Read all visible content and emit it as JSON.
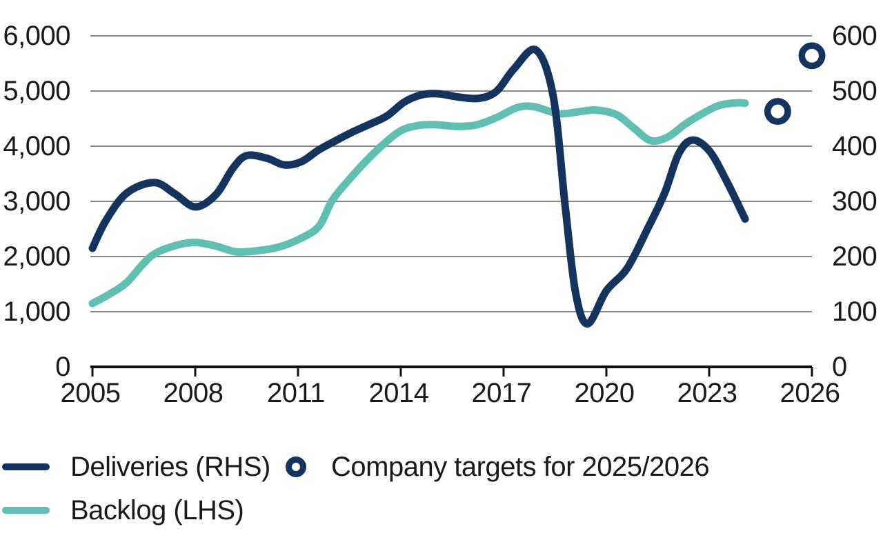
{
  "chart_data": {
    "type": "line",
    "title": "",
    "grid": true,
    "x_axis": {
      "tick_years": [
        2005,
        2008,
        2011,
        2014,
        2017,
        2020,
        2023,
        2026
      ],
      "tick_labels": [
        "2005",
        "2008",
        "2011",
        "2014",
        "2017",
        "2020",
        "2023",
        "2026"
      ],
      "range": [
        2005,
        2026
      ]
    },
    "y_axis_left": {
      "side": "left",
      "tick_values": [
        6000,
        5000,
        4000,
        3000,
        2000,
        1000,
        0
      ],
      "tick_labels": [
        "6,000",
        "5,000",
        "4,000",
        "3,000",
        "2,000",
        "1,000",
        "0"
      ],
      "range": [
        0,
        6000
      ]
    },
    "y_axis_right": {
      "side": "right",
      "tick_values": [
        600,
        500,
        400,
        300,
        200,
        100,
        0
      ],
      "tick_labels": [
        "600",
        "500",
        "400",
        "300",
        "200",
        "100",
        "0"
      ],
      "range": [
        0,
        600
      ]
    },
    "series": [
      {
        "name": "Deliveries (RHS)",
        "axis": "right",
        "color": "#14335D",
        "points": [
          [
            2005,
            215
          ],
          [
            2005.4,
            266
          ],
          [
            2006,
            315
          ],
          [
            2006.8,
            334
          ],
          [
            2007.4,
            314
          ],
          [
            2008,
            290
          ],
          [
            2008.6,
            312
          ],
          [
            2009.1,
            360
          ],
          [
            2009.5,
            383
          ],
          [
            2010.1,
            378
          ],
          [
            2010.6,
            366
          ],
          [
            2011.1,
            372
          ],
          [
            2011.6,
            393
          ],
          [
            2012.1,
            410
          ],
          [
            2012.6,
            426
          ],
          [
            2013.1,
            440
          ],
          [
            2013.6,
            455
          ],
          [
            2014.1,
            480
          ],
          [
            2014.6,
            493
          ],
          [
            2015.1,
            495
          ],
          [
            2015.7,
            489
          ],
          [
            2016.3,
            487
          ],
          [
            2016.8,
            500
          ],
          [
            2017.3,
            540
          ],
          [
            2017.95,
            574
          ],
          [
            2018.45,
            490
          ],
          [
            2018.8,
            290
          ],
          [
            2019.1,
            135
          ],
          [
            2019.45,
            78
          ],
          [
            2020,
            138
          ],
          [
            2020.6,
            178
          ],
          [
            2021.2,
            250
          ],
          [
            2021.7,
            315
          ],
          [
            2022.1,
            385
          ],
          [
            2022.5,
            411
          ],
          [
            2023,
            392
          ],
          [
            2023.5,
            338
          ],
          [
            2024.05,
            268
          ]
        ]
      },
      {
        "name": "Backlog (LHS)",
        "axis": "left",
        "color": "#60BFB2",
        "points": [
          [
            2005,
            1150
          ],
          [
            2005.5,
            1320
          ],
          [
            2006,
            1530
          ],
          [
            2006.7,
            2000
          ],
          [
            2007.4,
            2195
          ],
          [
            2008,
            2255
          ],
          [
            2008.6,
            2190
          ],
          [
            2009.2,
            2085
          ],
          [
            2009.8,
            2105
          ],
          [
            2010.4,
            2165
          ],
          [
            2011,
            2305
          ],
          [
            2011.6,
            2540
          ],
          [
            2012,
            3020
          ],
          [
            2012.5,
            3400
          ],
          [
            2013,
            3740
          ],
          [
            2013.5,
            4040
          ],
          [
            2014,
            4280
          ],
          [
            2014.5,
            4375
          ],
          [
            2015,
            4390
          ],
          [
            2015.6,
            4360
          ],
          [
            2016.2,
            4385
          ],
          [
            2016.8,
            4520
          ],
          [
            2017.4,
            4700
          ],
          [
            2017.9,
            4715
          ],
          [
            2018.6,
            4590
          ],
          [
            2019.2,
            4625
          ],
          [
            2019.7,
            4655
          ],
          [
            2020.3,
            4570
          ],
          [
            2020.8,
            4330
          ],
          [
            2021.3,
            4100
          ],
          [
            2021.8,
            4170
          ],
          [
            2022.3,
            4400
          ],
          [
            2022.8,
            4590
          ],
          [
            2023.3,
            4740
          ],
          [
            2023.8,
            4785
          ],
          [
            2024.05,
            4780
          ]
        ]
      }
    ],
    "target_markers": {
      "name": "Company targets for 2025/2026",
      "axis": "right",
      "color": "#14335D",
      "points": [
        [
          2025,
          463
        ],
        [
          2026,
          564
        ]
      ]
    }
  },
  "legend": {
    "deliveries_label": "Deliveries (RHS)",
    "backlog_label": "Backlog (LHS)",
    "targets_label": "Company targets for 2025/2026"
  },
  "colors": {
    "navy": "#14335D",
    "teal": "#60BFB2",
    "grid": "#3d3d3d",
    "axis": "#111111",
    "text": "#1a1a1a",
    "background": "#ffffff"
  }
}
